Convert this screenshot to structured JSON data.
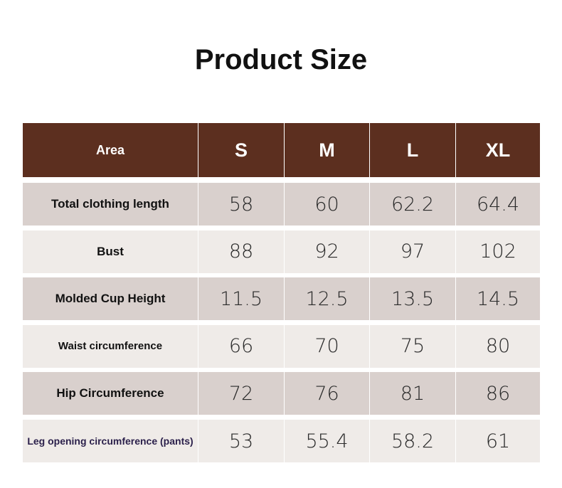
{
  "header": {
    "title": "Product Size"
  },
  "table": {
    "columns": [
      "Area",
      "S",
      "M",
      "L",
      "XL"
    ],
    "rows": [
      [
        "Total clothing length",
        "58",
        "60",
        "62.2",
        "64.4"
      ],
      [
        "Bust",
        "88",
        "92",
        "97",
        "102"
      ],
      [
        "Molded Cup Height",
        "11.5",
        "12.5",
        "13.5",
        "14.5"
      ],
      [
        "Waist circumference",
        "66",
        "70",
        "75",
        "80"
      ],
      [
        "Hip Circumference",
        "72",
        "76",
        "81",
        "86"
      ],
      [
        "Leg opening circumference (pants)",
        "53",
        "55.4",
        "58.2",
        "61"
      ]
    ]
  }
}
